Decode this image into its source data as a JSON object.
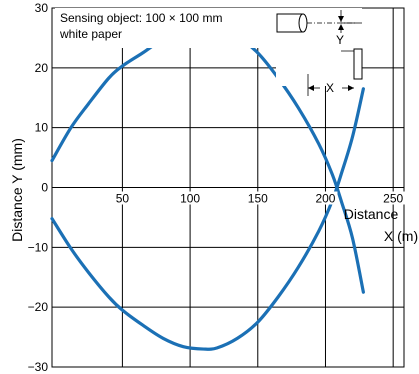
{
  "chart_data": {
    "type": "line",
    "xlabel_line1": "Distance",
    "xlabel_line2": "X (m)",
    "ylabel": "Distance Y (mm)",
    "xlim": [
      -2,
      258
    ],
    "ylim": [
      -30,
      30
    ],
    "x_ticks": [
      50,
      100,
      150,
      200,
      250
    ],
    "y_ticks": [
      30,
      20,
      10,
      0,
      -10,
      -20,
      -30
    ],
    "y_tick_labels": [
      "30",
      "20",
      "10",
      "0",
      "−10",
      "−20",
      "−30"
    ],
    "grid": true,
    "annotation_line1": "Sensing object: 100 × 100 mm",
    "annotation_line2": "white paper",
    "inset_labels": {
      "y": "Y",
      "x": "X"
    },
    "series_color": "#1b70b5",
    "series": [
      {
        "points": [
          [
            -2,
            4.5
          ],
          [
            12,
            10
          ],
          [
            25,
            14
          ],
          [
            40,
            18.3
          ],
          [
            50,
            20.3
          ],
          [
            65,
            22.5
          ],
          [
            80,
            24.8
          ],
          [
            95,
            26.2
          ],
          [
            110,
            26.8
          ],
          [
            120,
            26.7
          ],
          [
            135,
            25.2
          ],
          [
            150,
            22.5
          ],
          [
            165,
            18.3
          ],
          [
            180,
            13.3
          ],
          [
            195,
            7.3
          ],
          [
            205,
            2.2
          ],
          [
            212,
            -2.5
          ],
          [
            220,
            -8.5
          ],
          [
            228,
            -17.5
          ]
        ]
      },
      {
        "points": [
          [
            -2,
            -5.2
          ],
          [
            12,
            -10.2
          ],
          [
            25,
            -14.2
          ],
          [
            40,
            -18.3
          ],
          [
            50,
            -20.5
          ],
          [
            65,
            -23
          ],
          [
            80,
            -25.2
          ],
          [
            95,
            -26.6
          ],
          [
            110,
            -27
          ],
          [
            120,
            -26.8
          ],
          [
            135,
            -25.2
          ],
          [
            150,
            -22.5
          ],
          [
            165,
            -18.3
          ],
          [
            180,
            -13.3
          ],
          [
            195,
            -7.3
          ],
          [
            205,
            -2.2
          ],
          [
            212,
            2.5
          ],
          [
            220,
            8.5
          ],
          [
            228,
            16.5
          ]
        ]
      }
    ]
  }
}
